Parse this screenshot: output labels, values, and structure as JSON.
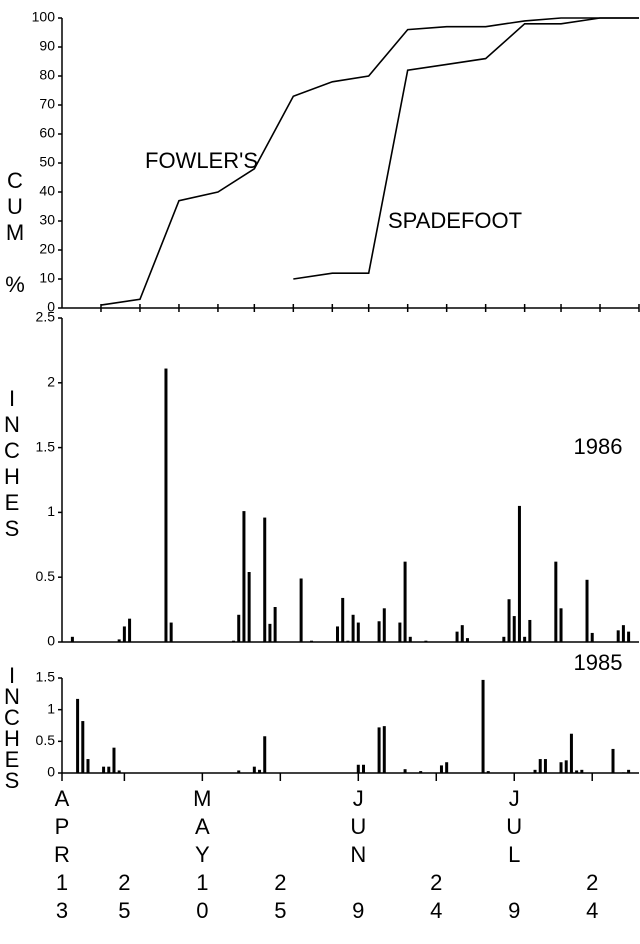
{
  "chart_data": [
    {
      "type": "line",
      "ylabel": "CUM %",
      "x": [
        7.5,
        15,
        22.5,
        30,
        37,
        44.5,
        52,
        59,
        66.5,
        74,
        81.5,
        89,
        96,
        103.5,
        111
      ],
      "xlim": [
        0,
        111
      ],
      "ylim": [
        0,
        100
      ],
      "yticks": [
        0,
        10,
        20,
        30,
        40,
        50,
        60,
        70,
        80,
        90,
        100
      ],
      "series": [
        {
          "name": "FOWLER'S",
          "color": "#000000",
          "values": [
            1,
            3,
            37,
            40,
            48,
            73,
            78,
            80,
            96,
            97,
            97,
            99,
            100,
            100,
            100
          ]
        },
        {
          "name": "SPADEFOOT",
          "color": "#000000",
          "values": [
            null,
            null,
            null,
            null,
            null,
            10,
            12,
            12,
            82,
            84,
            86,
            98,
            98,
            100,
            100
          ]
        }
      ]
    },
    {
      "type": "bar",
      "title": "1986",
      "ylabel": "INCHES",
      "color": "#000000",
      "x": [
        2,
        11,
        12,
        13,
        20,
        21,
        33,
        34,
        35,
        36,
        39,
        40,
        41,
        46,
        48,
        53,
        54,
        55,
        56,
        57,
        61,
        62,
        65,
        66,
        67,
        70,
        76,
        77,
        78,
        85,
        86,
        87,
        88,
        89,
        90,
        95,
        96,
        101,
        102,
        107,
        108,
        109
      ],
      "values": [
        0.04,
        0.02,
        0.12,
        0.18,
        2.11,
        0.15,
        0.01,
        0.21,
        1.01,
        0.54,
        0.96,
        0.14,
        0.27,
        0.49,
        0.01,
        0.12,
        0.34,
        0.01,
        0.21,
        0.15,
        0.16,
        0.26,
        0.15,
        0.62,
        0.04,
        0.01,
        0.08,
        0.13,
        0.03,
        0.04,
        0.33,
        0.2,
        1.05,
        0.04,
        0.17,
        0.62,
        0.26,
        0.48,
        0.07,
        0.09,
        0.13,
        0.08
      ],
      "xlim": [
        0,
        111
      ],
      "ylim": [
        0,
        2.5
      ],
      "yticks": [
        0,
        0.5,
        1,
        1.5,
        2,
        2.5
      ]
    },
    {
      "type": "bar",
      "title": "1985",
      "ylabel": "INCHES",
      "color": "#000000",
      "x": [
        3,
        4,
        5,
        8,
        9,
        10,
        11,
        34,
        37,
        38,
        39,
        57,
        58,
        61,
        62,
        66,
        69,
        73,
        74,
        81,
        82,
        91,
        92,
        93,
        96,
        97,
        98,
        99,
        100,
        106,
        108,
        109
      ],
      "values": [
        1.17,
        0.82,
        0.22,
        0.1,
        0.1,
        0.4,
        0.04,
        0.04,
        0.1,
        0.05,
        0.58,
        0.13,
        0.13,
        0.72,
        0.74,
        0.06,
        0.03,
        0.12,
        0.17,
        1.47,
        0.03,
        0.05,
        0.22,
        0.22,
        0.17,
        0.2,
        0.62,
        0.04,
        0.05,
        0.38,
        0.01,
        0.05
      ],
      "xlim": [
        0,
        111
      ],
      "ylim": [
        0,
        1.5
      ],
      "yticks": [
        0,
        0.5,
        1,
        1.5
      ],
      "xticks": [
        {
          "value": 0,
          "label": "APR 13"
        },
        {
          "value": 12,
          "label": "25"
        },
        {
          "value": 27,
          "label": "MAY 10"
        },
        {
          "value": 42,
          "label": "25"
        },
        {
          "value": 57,
          "label": "JUN 9"
        },
        {
          "value": 72,
          "label": "24"
        },
        {
          "value": 87,
          "label": "JUL 9"
        },
        {
          "value": 102,
          "label": "24"
        }
      ]
    }
  ]
}
